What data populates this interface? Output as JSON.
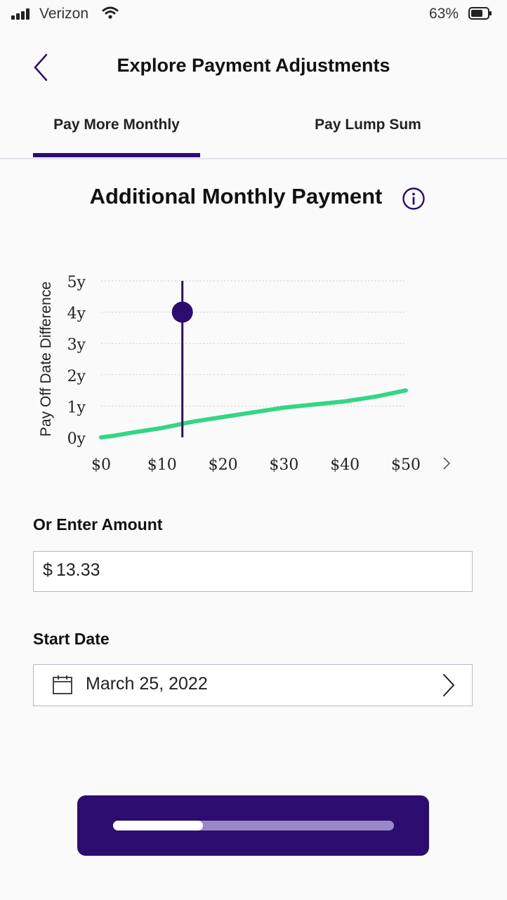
{
  "status_bar": {
    "carrier": "Verizon",
    "battery_percent": "63%",
    "icons": [
      "signal-icon",
      "wifi-icon",
      "battery-icon"
    ]
  },
  "header": {
    "title": "Explore Payment Adjustments",
    "back_icon": "chevron-left-icon"
  },
  "tabs": [
    {
      "label": "Pay More Monthly",
      "active": true
    },
    {
      "label": "Pay Lump Sum",
      "active": false
    }
  ],
  "section": {
    "title": "Additional Monthly Payment",
    "info_icon": "info-icon"
  },
  "chart_data": {
    "type": "line",
    "ylabel": "Pay Off Date Difference",
    "x_ticks": [
      "$0",
      "$10",
      "$20",
      "$30",
      "$40",
      "$50"
    ],
    "y_ticks": [
      "0y",
      "1y",
      "2y",
      "3y",
      "4y",
      "5y"
    ],
    "xlim": [
      0,
      50
    ],
    "ylim": [
      0,
      5
    ],
    "grid": true,
    "series": [
      {
        "x": [
          0,
          2,
          5,
          10,
          15,
          20,
          25,
          30,
          35,
          40,
          45,
          50
        ],
        "y": [
          0,
          0.05,
          0.15,
          0.3,
          0.5,
          0.65,
          0.8,
          0.95,
          1.05,
          1.15,
          1.3,
          1.5
        ],
        "color": "#34d684"
      }
    ],
    "marker": {
      "x": 13.33,
      "y": 4,
      "color": "#2c0d6f"
    },
    "next_icon": "chevron-right-icon"
  },
  "amount": {
    "label": "Or Enter Amount",
    "currency": "$",
    "value": "13.33"
  },
  "start_date": {
    "label": "Start Date",
    "value": "March 25, 2022",
    "calendar_icon": "calendar-icon",
    "chevron_icon": "chevron-right-icon"
  },
  "cta": {
    "progress": 0.32,
    "color": "#2c0d6f"
  },
  "colors": {
    "accent": "#2c0d6f",
    "line": "#34d684"
  }
}
